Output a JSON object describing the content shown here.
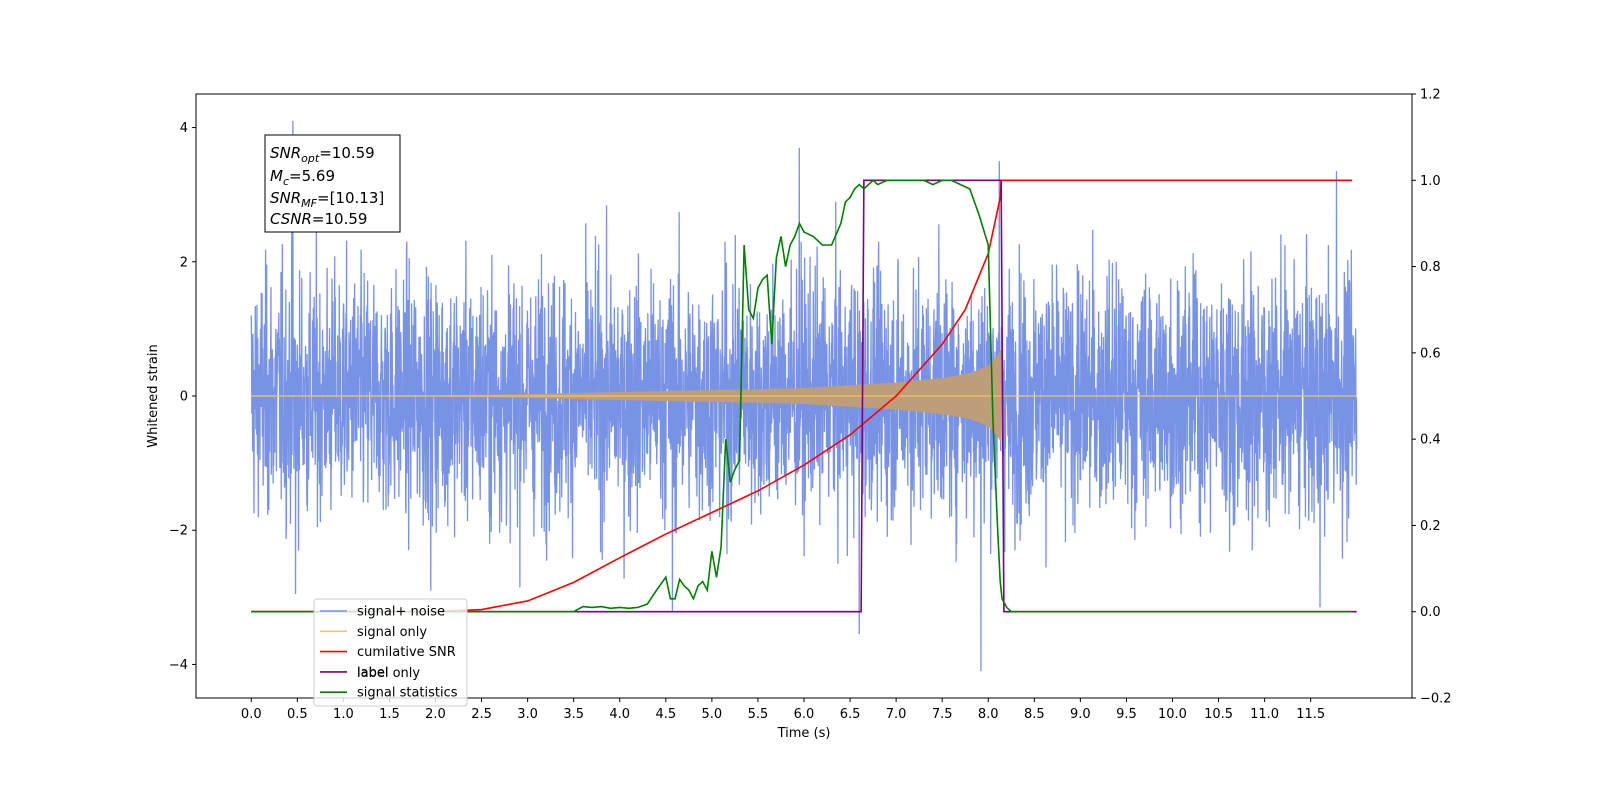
{
  "chart_data": {
    "type": "line",
    "xlabel": "Time (s)",
    "ylabel": "Whitened strain",
    "xlim": [
      -0.6,
      12.6
    ],
    "ylim": [
      -4.5,
      4.5
    ],
    "ylim_right": [
      -0.2,
      1.2
    ],
    "x_ticks": [
      "0.0",
      "0.5",
      "1.0",
      "1.5",
      "2.0",
      "2.5",
      "3.0",
      "3.5",
      "4.0",
      "4.5",
      "5.0",
      "5.5",
      "6.0",
      "6.5",
      "7.0",
      "7.5",
      "8.0",
      "8.5",
      "9.0",
      "9.5",
      "10.0",
      "10.5",
      "11.0",
      "11.5"
    ],
    "y_ticks_left": [
      "4",
      "2",
      "0",
      "−2",
      "−4"
    ],
    "y_ticks_left_values": [
      4,
      2,
      0,
      -2,
      -4
    ],
    "y_ticks_right": [
      "1.2",
      "1.0",
      "0.8",
      "0.6",
      "0.4",
      "0.2",
      "0.0",
      "−0.2"
    ],
    "y_ticks_right_values": [
      1.2,
      1.0,
      0.8,
      0.6,
      0.4,
      0.2,
      0.0,
      -0.2
    ],
    "legend_position": "lower-left",
    "legend": [
      {
        "label": "signal+ noise",
        "color": "#7893e6"
      },
      {
        "label": "signal only",
        "color": "#f5c26b"
      },
      {
        "label": "cumilative SNR",
        "color": "#ff0000"
      },
      {
        "label": "label",
        "color": "#800080"
      },
      {
        "label": "signal statistics",
        "color": "#008000"
      }
    ],
    "hidden_legend_text": "label only",
    "annotation": {
      "snr_opt_main": "SNR",
      "snr_opt_sub": "opt",
      "snr_opt_value": "=10.59",
      "mc_main": "M",
      "mc_sub": "c",
      "mc_value": "=5.69",
      "snr_mf_main": "SNR",
      "snr_mf_sub": "MF",
      "snr_mf_value": "=[10.13]",
      "csnr_main": "CSNR",
      "csnr_value": "=10.59"
    },
    "series": [
      {
        "name": "signal+ noise",
        "axis": "left",
        "color": "#7893e6",
        "x_range": [
          0.0,
          12.0
        ],
        "n_points": 4096,
        "std": 0.9,
        "spikes": [
          [
            0.45,
            4.1
          ],
          [
            5.95,
            3.7
          ],
          [
            8.12,
            3.5
          ],
          [
            11.78,
            3.35
          ],
          [
            7.92,
            -4.1
          ],
          [
            6.6,
            -3.55
          ],
          [
            4.57,
            -3.2
          ],
          [
            0.48,
            -2.95
          ],
          [
            11.6,
            -3.15
          ],
          [
            1.95,
            -2.9
          ]
        ]
      },
      {
        "name": "signal only",
        "axis": "left",
        "color": "#f5c26b",
        "fill": "#bd9e78",
        "x": [
          0.0,
          2.0,
          3.0,
          4.0,
          5.0,
          5.5,
          6.0,
          6.5,
          7.0,
          7.5,
          7.8,
          8.0,
          8.1,
          8.14,
          8.15,
          12.0
        ],
        "envelope": [
          0.01,
          0.01,
          0.03,
          0.06,
          0.09,
          0.1,
          0.12,
          0.16,
          0.2,
          0.27,
          0.34,
          0.45,
          0.6,
          0.7,
          0.0,
          0.0
        ]
      },
      {
        "name": "cumilative SNR",
        "axis": "right",
        "color": "#ff0000",
        "x": [
          0.0,
          2.0,
          2.5,
          3.0,
          3.5,
          4.0,
          4.5,
          5.0,
          5.5,
          6.0,
          6.5,
          7.0,
          7.5,
          7.75,
          8.0,
          8.13,
          8.14,
          8.2,
          11.95
        ],
        "y": [
          0.0,
          0.0,
          0.005,
          0.025,
          0.068,
          0.125,
          0.18,
          0.23,
          0.28,
          0.34,
          0.41,
          0.5,
          0.62,
          0.7,
          0.83,
          0.96,
          1.0,
          1.0,
          1.0
        ]
      },
      {
        "name": "label",
        "axis": "right",
        "color": "#800080",
        "x": [
          0.0,
          6.62,
          6.65,
          8.14,
          8.17,
          12.0
        ],
        "y": [
          0.0,
          0.0,
          1.0,
          1.0,
          0.0,
          0.0
        ]
      },
      {
        "name": "signal statistics",
        "axis": "right",
        "color": "#008000",
        "x": [
          0.0,
          3.5,
          3.6,
          3.7,
          3.8,
          3.9,
          4.0,
          4.1,
          4.2,
          4.3,
          4.4,
          4.5,
          4.55,
          4.6,
          4.65,
          4.7,
          4.75,
          4.8,
          4.85,
          4.9,
          4.95,
          5.0,
          5.05,
          5.1,
          5.15,
          5.2,
          5.25,
          5.3,
          5.35,
          5.4,
          5.45,
          5.5,
          5.55,
          5.6,
          5.65,
          5.7,
          5.75,
          5.8,
          5.85,
          5.9,
          5.95,
          6.0,
          6.1,
          6.2,
          6.3,
          6.4,
          6.45,
          6.5,
          6.55,
          6.6,
          6.65,
          6.7,
          6.75,
          6.8,
          6.9,
          7.0,
          7.1,
          7.2,
          7.3,
          7.4,
          7.5,
          7.6,
          7.7,
          7.8,
          7.9,
          8.0,
          8.05,
          8.1,
          8.13,
          8.15,
          8.2,
          8.25,
          8.3,
          8.35,
          8.45,
          8.6,
          11.95
        ],
        "y": [
          0.0,
          0.0,
          0.012,
          0.01,
          0.012,
          0.008,
          0.01,
          0.008,
          0.01,
          0.018,
          0.05,
          0.08,
          0.03,
          0.03,
          0.075,
          0.06,
          0.05,
          0.03,
          0.06,
          0.07,
          0.05,
          0.14,
          0.08,
          0.15,
          0.4,
          0.3,
          0.33,
          0.35,
          0.85,
          0.7,
          0.68,
          0.75,
          0.77,
          0.78,
          0.62,
          0.82,
          0.87,
          0.8,
          0.85,
          0.87,
          0.9,
          0.88,
          0.87,
          0.85,
          0.85,
          0.9,
          0.95,
          0.96,
          0.98,
          0.99,
          0.98,
          0.99,
          1.0,
          0.99,
          1.0,
          1.0,
          1.0,
          1.0,
          1.0,
          0.99,
          1.0,
          1.0,
          0.99,
          0.98,
          0.92,
          0.85,
          0.45,
          0.2,
          0.07,
          0.03,
          0.01,
          0.0,
          0.0,
          0.0,
          0.0,
          0.0,
          0.0
        ]
      }
    ]
  }
}
